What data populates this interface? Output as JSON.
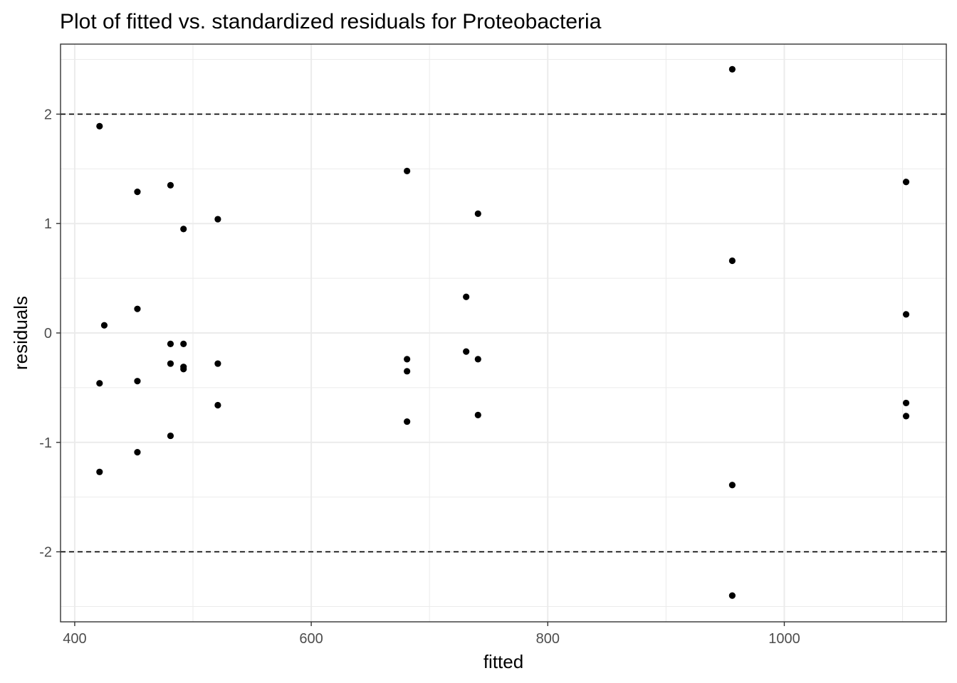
{
  "chart_data": {
    "type": "scatter",
    "title": "Plot of fitted vs. standardized residuals for Proteobacteria",
    "xlabel": "fitted",
    "ylabel": "residuals",
    "xlim": [
      388,
      1137
    ],
    "ylim": [
      -2.64,
      2.64
    ],
    "x_ticks": [
      400,
      600,
      800,
      1000
    ],
    "x_tick_labels": [
      "400",
      "600",
      "800",
      "1000"
    ],
    "y_ticks": [
      -2,
      -1,
      0,
      1,
      2
    ],
    "y_tick_labels": [
      "-2",
      "-1",
      "0",
      "1",
      "2"
    ],
    "x_minor_grid": [
      500,
      700,
      900,
      1100
    ],
    "y_minor_grid": [
      -2.5,
      -1.5,
      -0.5,
      0.5,
      1.5,
      2.5
    ],
    "reference_lines": [
      2,
      -2
    ],
    "grid": true,
    "colors": {
      "points": "#000000",
      "grid": "#ebebeb",
      "panel_border": "#333333",
      "reference_line": "#000000",
      "tick_label": "#4d4d4d"
    },
    "points": [
      {
        "x": 421,
        "y": 1.89
      },
      {
        "x": 421,
        "y": -0.46
      },
      {
        "x": 421,
        "y": -1.27
      },
      {
        "x": 425,
        "y": 0.07
      },
      {
        "x": 453,
        "y": 1.29
      },
      {
        "x": 453,
        "y": 0.22
      },
      {
        "x": 453,
        "y": -0.44
      },
      {
        "x": 453,
        "y": -1.09
      },
      {
        "x": 481,
        "y": 1.35
      },
      {
        "x": 481,
        "y": -0.1
      },
      {
        "x": 481,
        "y": -0.28
      },
      {
        "x": 481,
        "y": -0.94
      },
      {
        "x": 492,
        "y": 0.95
      },
      {
        "x": 492,
        "y": -0.1
      },
      {
        "x": 492,
        "y": -0.31
      },
      {
        "x": 492,
        "y": -0.33
      },
      {
        "x": 521,
        "y": 1.04
      },
      {
        "x": 521,
        "y": -0.28
      },
      {
        "x": 521,
        "y": -0.66
      },
      {
        "x": 681,
        "y": 1.48
      },
      {
        "x": 681,
        "y": -0.24
      },
      {
        "x": 681,
        "y": -0.35
      },
      {
        "x": 681,
        "y": -0.81
      },
      {
        "x": 731,
        "y": 0.33
      },
      {
        "x": 731,
        "y": -0.17
      },
      {
        "x": 741,
        "y": 1.09
      },
      {
        "x": 741,
        "y": -0.24
      },
      {
        "x": 741,
        "y": -0.75
      },
      {
        "x": 956,
        "y": 2.41
      },
      {
        "x": 956,
        "y": 0.66
      },
      {
        "x": 956,
        "y": -1.39
      },
      {
        "x": 956,
        "y": -2.4
      },
      {
        "x": 1103,
        "y": 1.38
      },
      {
        "x": 1103,
        "y": 0.17
      },
      {
        "x": 1103,
        "y": -0.64
      },
      {
        "x": 1103,
        "y": -0.76
      }
    ]
  }
}
